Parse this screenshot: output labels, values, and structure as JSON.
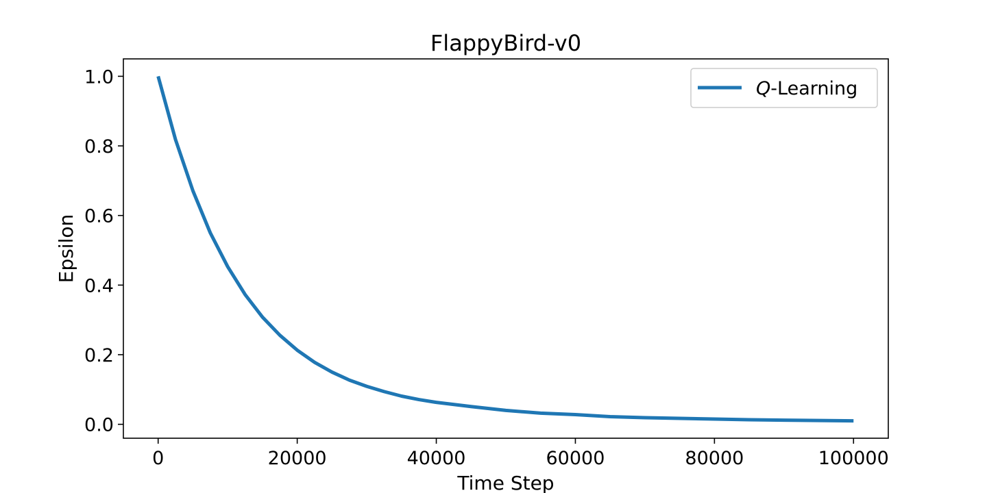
{
  "chart_data": {
    "type": "line",
    "title": "FlappyBird-v0",
    "xlabel": "Time Step",
    "ylabel": "Epsilon",
    "xlim": [
      -5000,
      105000
    ],
    "ylim": [
      -0.04,
      1.05
    ],
    "xticks": [
      0,
      20000,
      40000,
      60000,
      80000,
      100000
    ],
    "xtick_labels": [
      "0",
      "20000",
      "40000",
      "60000",
      "80000",
      "100000"
    ],
    "yticks": [
      0.0,
      0.2,
      0.4,
      0.6,
      0.8,
      1.0
    ],
    "ytick_labels": [
      "0.0",
      "0.2",
      "0.4",
      "0.6",
      "0.8",
      "1.0"
    ],
    "grid": false,
    "legend_position": "top-right",
    "series": [
      {
        "name_prefix": "Q",
        "name_suffix": "-Learning",
        "color": "#1f77b4",
        "x": [
          0,
          2500,
          5000,
          7500,
          10000,
          12500,
          15000,
          17500,
          20000,
          22500,
          25000,
          27500,
          30000,
          32500,
          35000,
          37500,
          40000,
          45000,
          50000,
          55000,
          60000,
          65000,
          70000,
          75000,
          80000,
          85000,
          90000,
          95000,
          100000
        ],
        "y": [
          1.0,
          0.818,
          0.671,
          0.55,
          0.453,
          0.373,
          0.308,
          0.256,
          0.213,
          0.178,
          0.15,
          0.127,
          0.109,
          0.094,
          0.081,
          0.071,
          0.063,
          0.051,
          0.04,
          0.032,
          0.028,
          0.022,
          0.019,
          0.017,
          0.015,
          0.013,
          0.012,
          0.011,
          0.01
        ]
      }
    ]
  }
}
